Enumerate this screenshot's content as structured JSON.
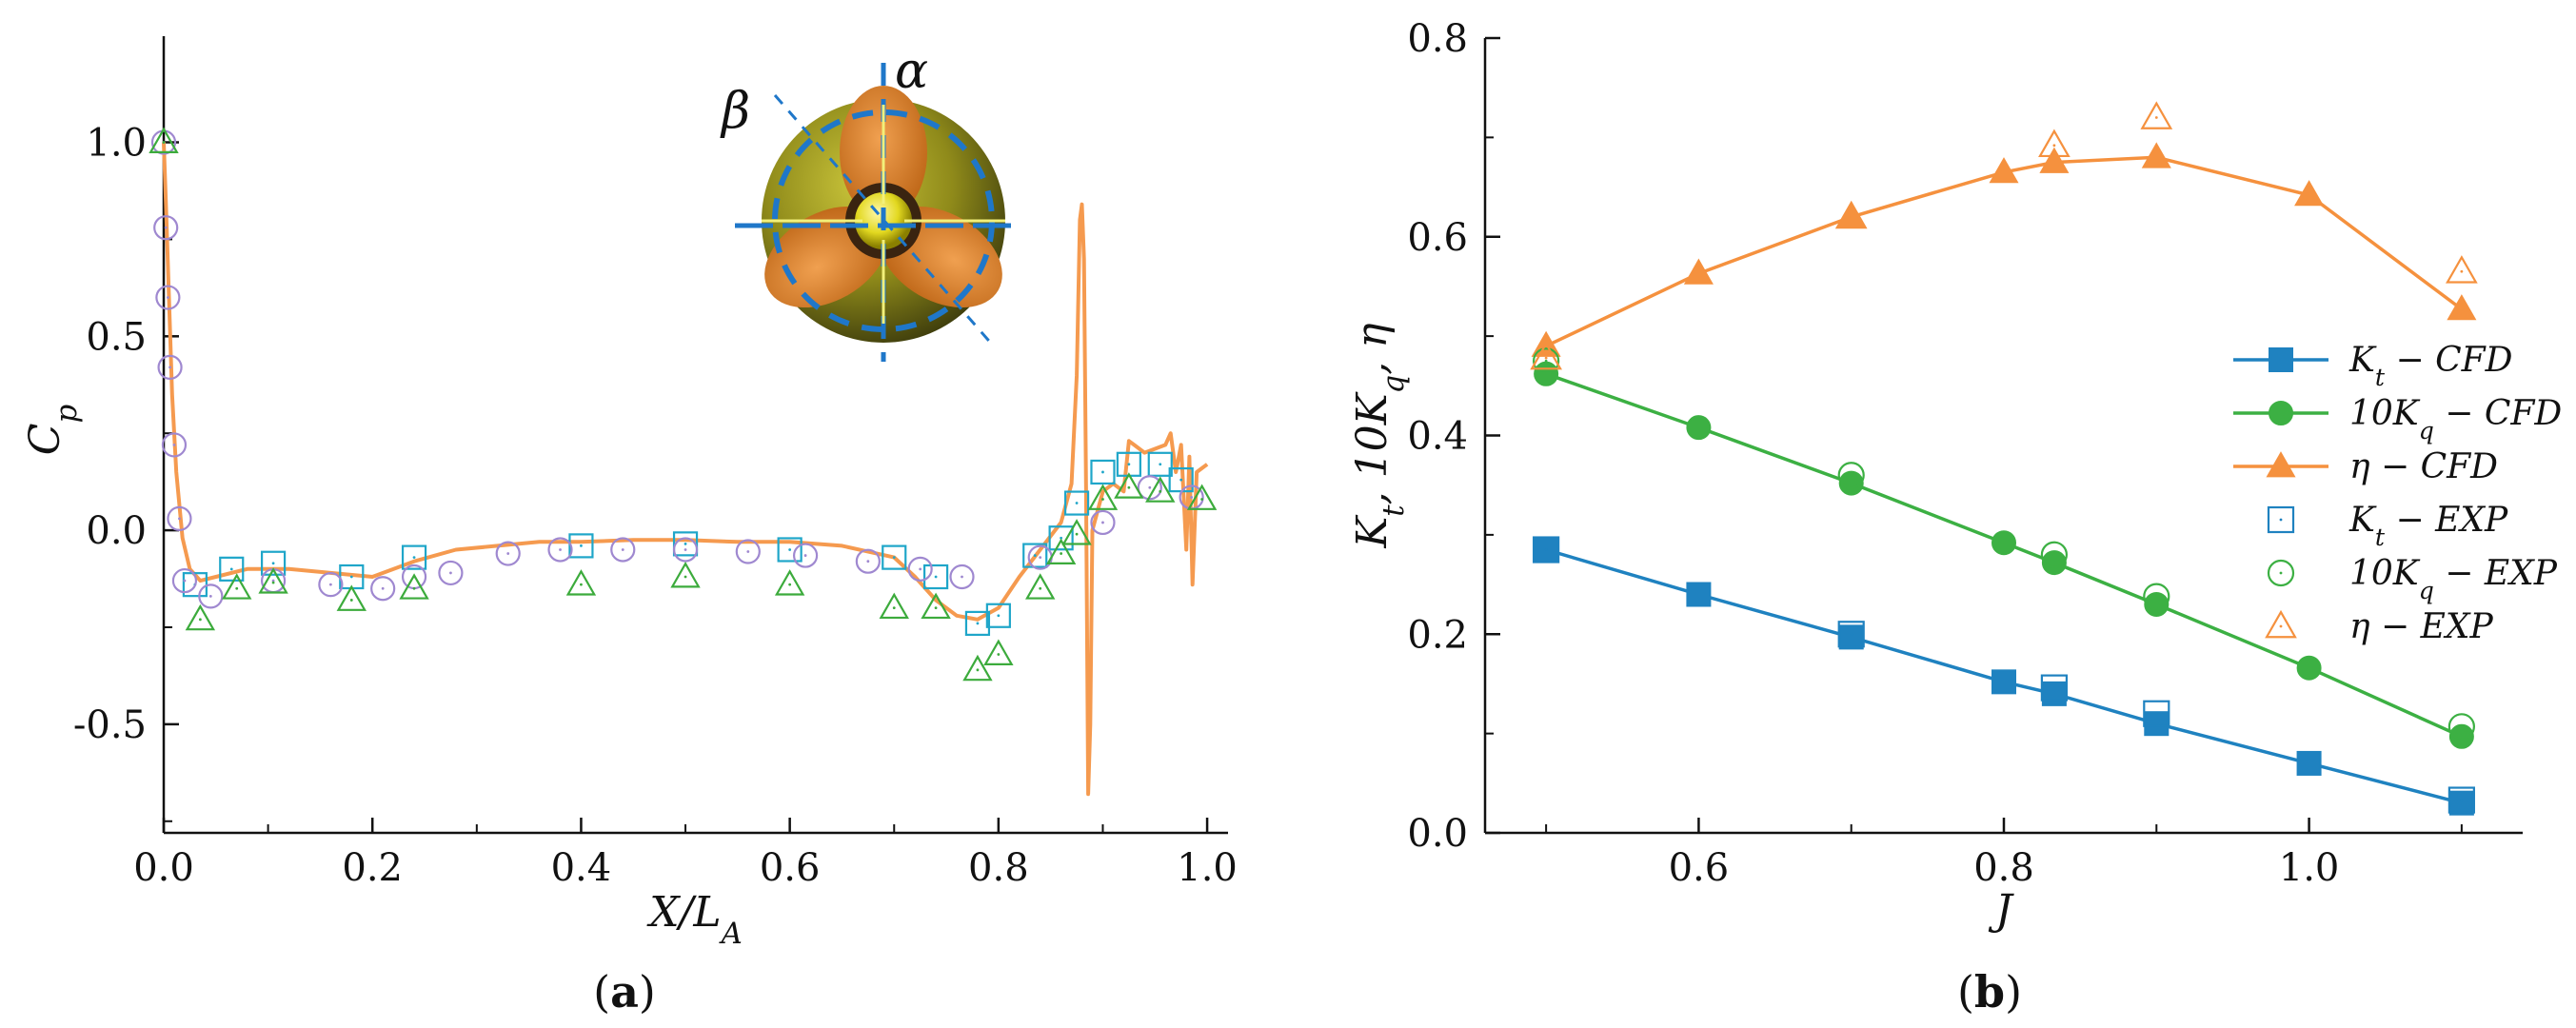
{
  "panel_a_label": "a",
  "panel_b_label": "b",
  "chart_data": [
    {
      "type": "scatter",
      "panel": "a",
      "xlabel": "X/L_A",
      "ylabel": "C_p",
      "xlim": [
        0,
        1.02
      ],
      "ylim": [
        -0.78,
        1.2
      ],
      "xticks": [
        0.0,
        0.2,
        0.4,
        0.6,
        0.8,
        1.0
      ],
      "xtick_labels": [
        "0.0",
        "0.2",
        "0.4",
        "0.6",
        "0.8",
        "1.0"
      ],
      "yticks": [
        -0.5,
        0.0,
        0.5,
        1.0
      ],
      "ytick_labels": [
        "-0.5",
        "0.0",
        "0.5",
        "1.0"
      ],
      "grid": false,
      "inset_labels": {
        "alpha": "α",
        "beta": "β"
      },
      "colors": {
        "line": "#f59a4f",
        "square": "#1fa6c9",
        "circle": "#9f88d0",
        "triangle": "#3cab3c"
      },
      "series": [
        {
          "type": "line",
          "x": [
            0.0,
            0.002,
            0.005,
            0.008,
            0.012,
            0.018,
            0.025,
            0.035,
            0.05,
            0.08,
            0.12,
            0.16,
            0.2,
            0.24,
            0.28,
            0.32,
            0.36,
            0.4,
            0.45,
            0.5,
            0.55,
            0.6,
            0.65,
            0.7,
            0.72,
            0.74,
            0.76,
            0.78,
            0.8,
            0.82,
            0.84,
            0.86,
            0.87,
            0.875,
            0.878,
            0.88,
            0.882,
            0.884,
            0.886,
            0.888,
            0.89,
            0.895,
            0.9,
            0.91,
            0.92,
            0.925,
            0.93,
            0.94,
            0.95,
            0.96,
            0.965,
            0.97,
            0.975,
            0.98,
            0.983,
            0.986,
            0.99,
            0.995,
            1.0
          ],
          "y": [
            1.0,
            0.85,
            0.6,
            0.35,
            0.15,
            -0.02,
            -0.1,
            -0.13,
            -0.12,
            -0.1,
            -0.1,
            -0.11,
            -0.12,
            -0.08,
            -0.05,
            -0.04,
            -0.03,
            -0.03,
            -0.025,
            -0.025,
            -0.03,
            -0.03,
            -0.04,
            -0.07,
            -0.12,
            -0.18,
            -0.22,
            -0.23,
            -0.2,
            -0.12,
            -0.05,
            0.02,
            0.12,
            0.4,
            0.8,
            0.84,
            0.7,
            0.1,
            -0.68,
            -0.5,
            0.0,
            0.05,
            0.1,
            0.12,
            0.1,
            0.23,
            0.22,
            0.2,
            0.21,
            0.22,
            0.25,
            0.15,
            0.22,
            -0.05,
            0.19,
            -0.14,
            0.15,
            0.16,
            0.17
          ]
        },
        {
          "type": "square",
          "x": [
            0.03,
            0.065,
            0.105,
            0.18,
            0.24,
            0.4,
            0.5,
            0.6,
            0.7,
            0.74,
            0.78,
            0.8,
            0.835,
            0.86,
            0.875,
            0.9,
            0.925,
            0.955,
            0.975
          ],
          "y": [
            -0.14,
            -0.1,
            -0.085,
            -0.12,
            -0.07,
            -0.04,
            -0.035,
            -0.05,
            -0.07,
            -0.12,
            -0.24,
            -0.22,
            -0.065,
            -0.02,
            0.07,
            0.15,
            0.17,
            0.17,
            0.13
          ]
        },
        {
          "type": "circle",
          "x": [
            0.0,
            0.002,
            0.004,
            0.006,
            0.01,
            0.015,
            0.02,
            0.045,
            0.105,
            0.16,
            0.21,
            0.24,
            0.275,
            0.33,
            0.38,
            0.44,
            0.5,
            0.56,
            0.615,
            0.675,
            0.725,
            0.765,
            0.84,
            0.9,
            0.945,
            0.985
          ],
          "y": [
            1.0,
            0.78,
            0.6,
            0.42,
            0.22,
            0.03,
            -0.13,
            -0.17,
            -0.13,
            -0.14,
            -0.15,
            -0.12,
            -0.11,
            -0.06,
            -0.05,
            -0.05,
            -0.05,
            -0.055,
            -0.065,
            -0.08,
            -0.1,
            -0.12,
            -0.07,
            0.02,
            0.11,
            0.085
          ]
        },
        {
          "type": "triangle",
          "x": [
            0.0,
            0.035,
            0.07,
            0.105,
            0.18,
            0.24,
            0.4,
            0.5,
            0.6,
            0.7,
            0.74,
            0.78,
            0.8,
            0.84,
            0.86,
            0.875,
            0.9,
            0.925,
            0.955,
            0.995
          ],
          "y": [
            1.0,
            -0.23,
            -0.15,
            -0.135,
            -0.18,
            -0.15,
            -0.14,
            -0.12,
            -0.14,
            -0.2,
            -0.2,
            -0.36,
            -0.32,
            -0.15,
            -0.06,
            -0.01,
            0.08,
            0.11,
            0.1,
            0.08
          ]
        }
      ]
    },
    {
      "type": "line",
      "panel": "b",
      "xlabel": "J",
      "ylabel": "K_t, 10K_q, η",
      "xlim": [
        0.46,
        1.14
      ],
      "ylim": [
        0.0,
        0.8
      ],
      "xticks": [
        0.6,
        0.8,
        1.0
      ],
      "xtick_labels": [
        "0.6",
        "0.8",
        "1.0"
      ],
      "yticks": [
        0.0,
        0.2,
        0.4,
        0.6,
        0.8
      ],
      "ytick_labels": [
        "0.0",
        "0.2",
        "0.4",
        "0.6",
        "0.8"
      ],
      "grid": false,
      "legend_position": "center-right",
      "series": [
        {
          "name": "K_t − CFD",
          "marker": "square-filled",
          "color": "#1f82c0",
          "line": true,
          "x": [
            0.5,
            0.6,
            0.7,
            0.8,
            0.833,
            0.9,
            1.0,
            1.1
          ],
          "y": [
            0.285,
            0.24,
            0.197,
            0.152,
            0.14,
            0.11,
            0.07,
            0.03
          ]
        },
        {
          "name": "10K_q − CFD",
          "marker": "circle-filled",
          "color": "#3cb043",
          "line": true,
          "x": [
            0.5,
            0.6,
            0.7,
            0.8,
            0.833,
            0.9,
            1.0,
            1.1
          ],
          "y": [
            0.462,
            0.408,
            0.352,
            0.292,
            0.272,
            0.23,
            0.166,
            0.097
          ]
        },
        {
          "name": "η − CFD",
          "marker": "triangle-filled",
          "color": "#f5913e",
          "line": true,
          "x": [
            0.5,
            0.6,
            0.7,
            0.8,
            0.833,
            0.9,
            1.0,
            1.1
          ],
          "y": [
            0.49,
            0.563,
            0.62,
            0.665,
            0.675,
            0.68,
            0.642,
            0.527
          ]
        },
        {
          "name": "K_t − EXP",
          "marker": "square-open",
          "color": "#1f82c0",
          "line": false,
          "x": [
            0.5,
            0.7,
            0.833,
            0.9,
            1.1
          ],
          "y": [
            0.285,
            0.2,
            0.146,
            0.12,
            0.033
          ]
        },
        {
          "name": "10K_q − EXP",
          "marker": "circle-open",
          "color": "#3cb043",
          "line": false,
          "x": [
            0.5,
            0.7,
            0.833,
            0.9,
            1.1
          ],
          "y": [
            0.475,
            0.36,
            0.28,
            0.238,
            0.107
          ]
        },
        {
          "name": "η − EXP",
          "marker": "triangle-open",
          "color": "#f5913e",
          "line": false,
          "x": [
            0.5,
            0.7,
            0.833,
            0.9,
            1.1
          ],
          "y": [
            0.478,
            0.62,
            0.692,
            0.72,
            0.565
          ]
        }
      ]
    }
  ]
}
